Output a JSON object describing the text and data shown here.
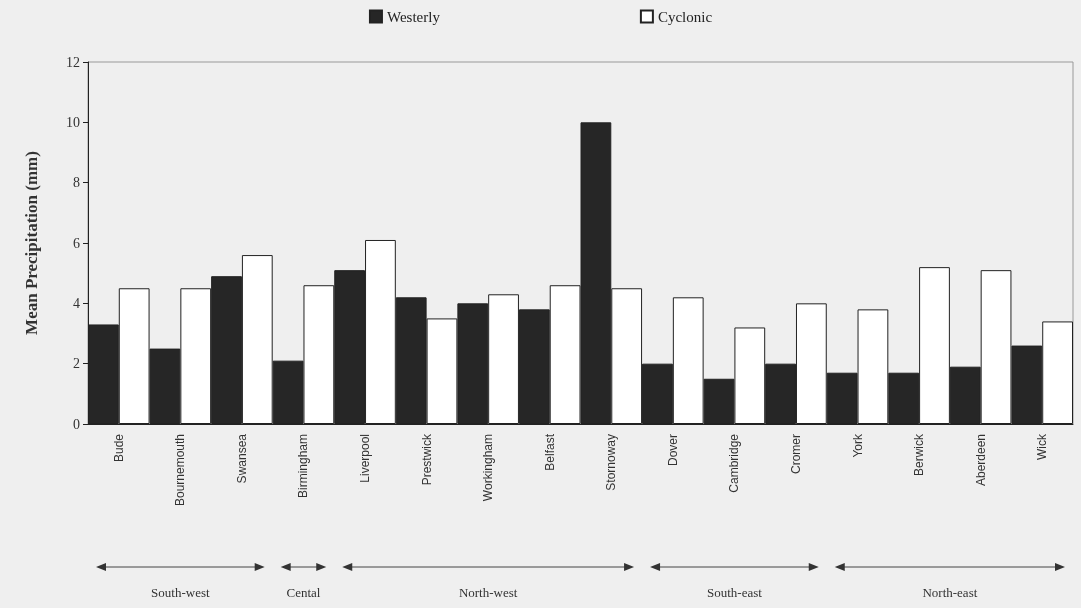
{
  "chart_data": {
    "type": "bar",
    "ylabel": "Mean Precipitation (mm)",
    "categories": [
      "Bude",
      "Bournemouth",
      "Swansea",
      "Birmingham",
      "Liverpool",
      "Prestwick",
      "Workingham",
      "Belfast",
      "Stornoway",
      "Dover",
      "Cambridge",
      "Cromer",
      "York",
      "Berwick",
      "Aberdeen",
      "Wick"
    ],
    "series": [
      {
        "name": "Westerly",
        "color": "#262626",
        "values": [
          3.3,
          2.5,
          4.9,
          2.1,
          5.1,
          4.2,
          4.0,
          3.8,
          10.0,
          2.0,
          1.5,
          2.0,
          1.7,
          1.7,
          1.9,
          2.6
        ]
      },
      {
        "name": "Cyclonic",
        "color": "#ffffff",
        "values": [
          4.5,
          4.5,
          5.6,
          4.6,
          6.1,
          3.5,
          4.3,
          4.6,
          4.5,
          4.2,
          3.2,
          4.0,
          3.8,
          5.2,
          5.1,
          3.4
        ]
      }
    ],
    "ylim": [
      0,
      12
    ],
    "yticks": [
      0,
      2,
      4,
      6,
      8,
      10,
      12
    ],
    "grid": false,
    "legend": "top",
    "annotations": [
      "South-west",
      "Cental",
      "North-west",
      "South-east",
      "North-east"
    ]
  }
}
